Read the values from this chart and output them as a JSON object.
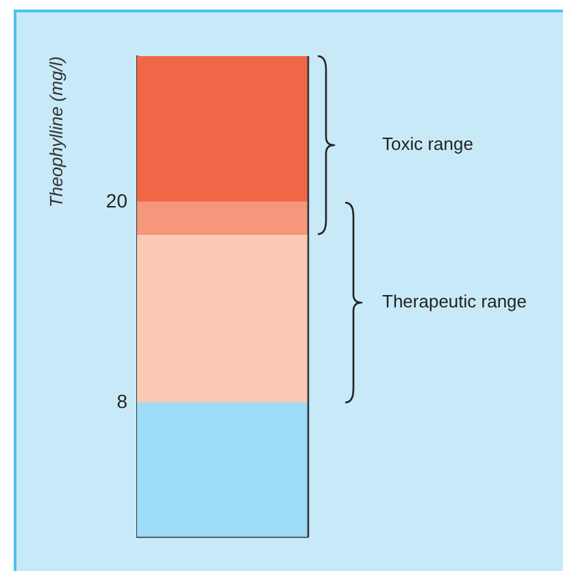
{
  "chart_data": {
    "type": "bar",
    "stacked": true,
    "ylabel": "Theophylline (mg/l)",
    "categories": [
      null
    ],
    "series": [
      {
        "color": "#9ddbf6",
        "values": [
          8
        ]
      },
      {
        "color": "#fbc9b4",
        "values": [
          10
        ]
      },
      {
        "color": "#f4977a",
        "values": [
          2
        ]
      },
      {
        "color": "#f06748",
        "values": [
          8.7
        ]
      }
    ],
    "ylim": [
      0,
      28.7
    ],
    "yticks": [
      20,
      8
    ],
    "legend": false,
    "tick_labels": "y",
    "annotations": [
      "Toxic range",
      "Therapeutic range"
    ]
  }
}
